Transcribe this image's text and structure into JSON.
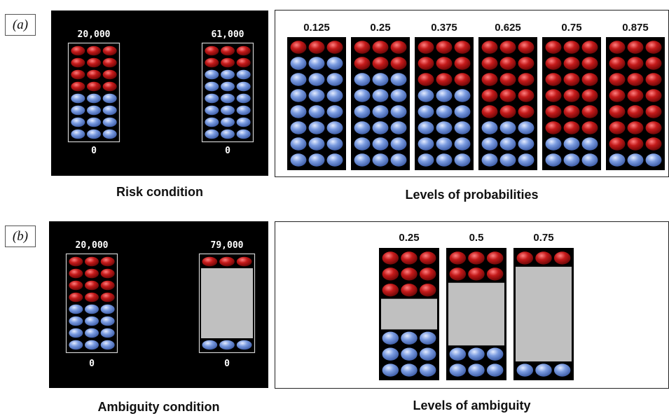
{
  "colors": {
    "red": "#c41a1a",
    "blue": "#7a9be0",
    "gray": "#c0c0c0",
    "black": "#000000"
  },
  "panel_a": {
    "label": "(a)",
    "risk": {
      "caption": "Risk condition",
      "urns": [
        {
          "top_value": "20,000",
          "bottom_value": "0",
          "red": 4,
          "blue": 4
        },
        {
          "top_value": "61,000",
          "bottom_value": "0",
          "red": 2,
          "blue": 6
        }
      ]
    },
    "levels": {
      "caption": "Levels of probabilities",
      "urns": [
        {
          "label": "0.125",
          "red": 1,
          "blue": 7
        },
        {
          "label": "0.25",
          "red": 2,
          "blue": 6
        },
        {
          "label": "0.375",
          "red": 3,
          "blue": 5
        },
        {
          "label": "0.625",
          "red": 5,
          "blue": 3
        },
        {
          "label": "0.75",
          "red": 6,
          "blue": 2
        },
        {
          "label": "0.875",
          "red": 7,
          "blue": 1
        }
      ]
    }
  },
  "panel_b": {
    "label": "(b)",
    "ambiguity": {
      "caption": "Ambiguity condition",
      "urns": [
        {
          "top_value": "20,000",
          "bottom_value": "0",
          "red": 4,
          "gray": 0,
          "blue": 4
        },
        {
          "top_value": "79,000",
          "bottom_value": "0",
          "red": 1,
          "gray": 6,
          "blue": 1
        }
      ]
    },
    "levels": {
      "caption": "Levels of ambiguity",
      "urns": [
        {
          "label": "0.25",
          "red": 3,
          "gray": 2,
          "blue": 3
        },
        {
          "label": "0.5",
          "red": 2,
          "gray": 4,
          "blue": 2
        },
        {
          "label": "0.75",
          "red": 1,
          "gray": 6,
          "blue": 1
        }
      ]
    }
  }
}
